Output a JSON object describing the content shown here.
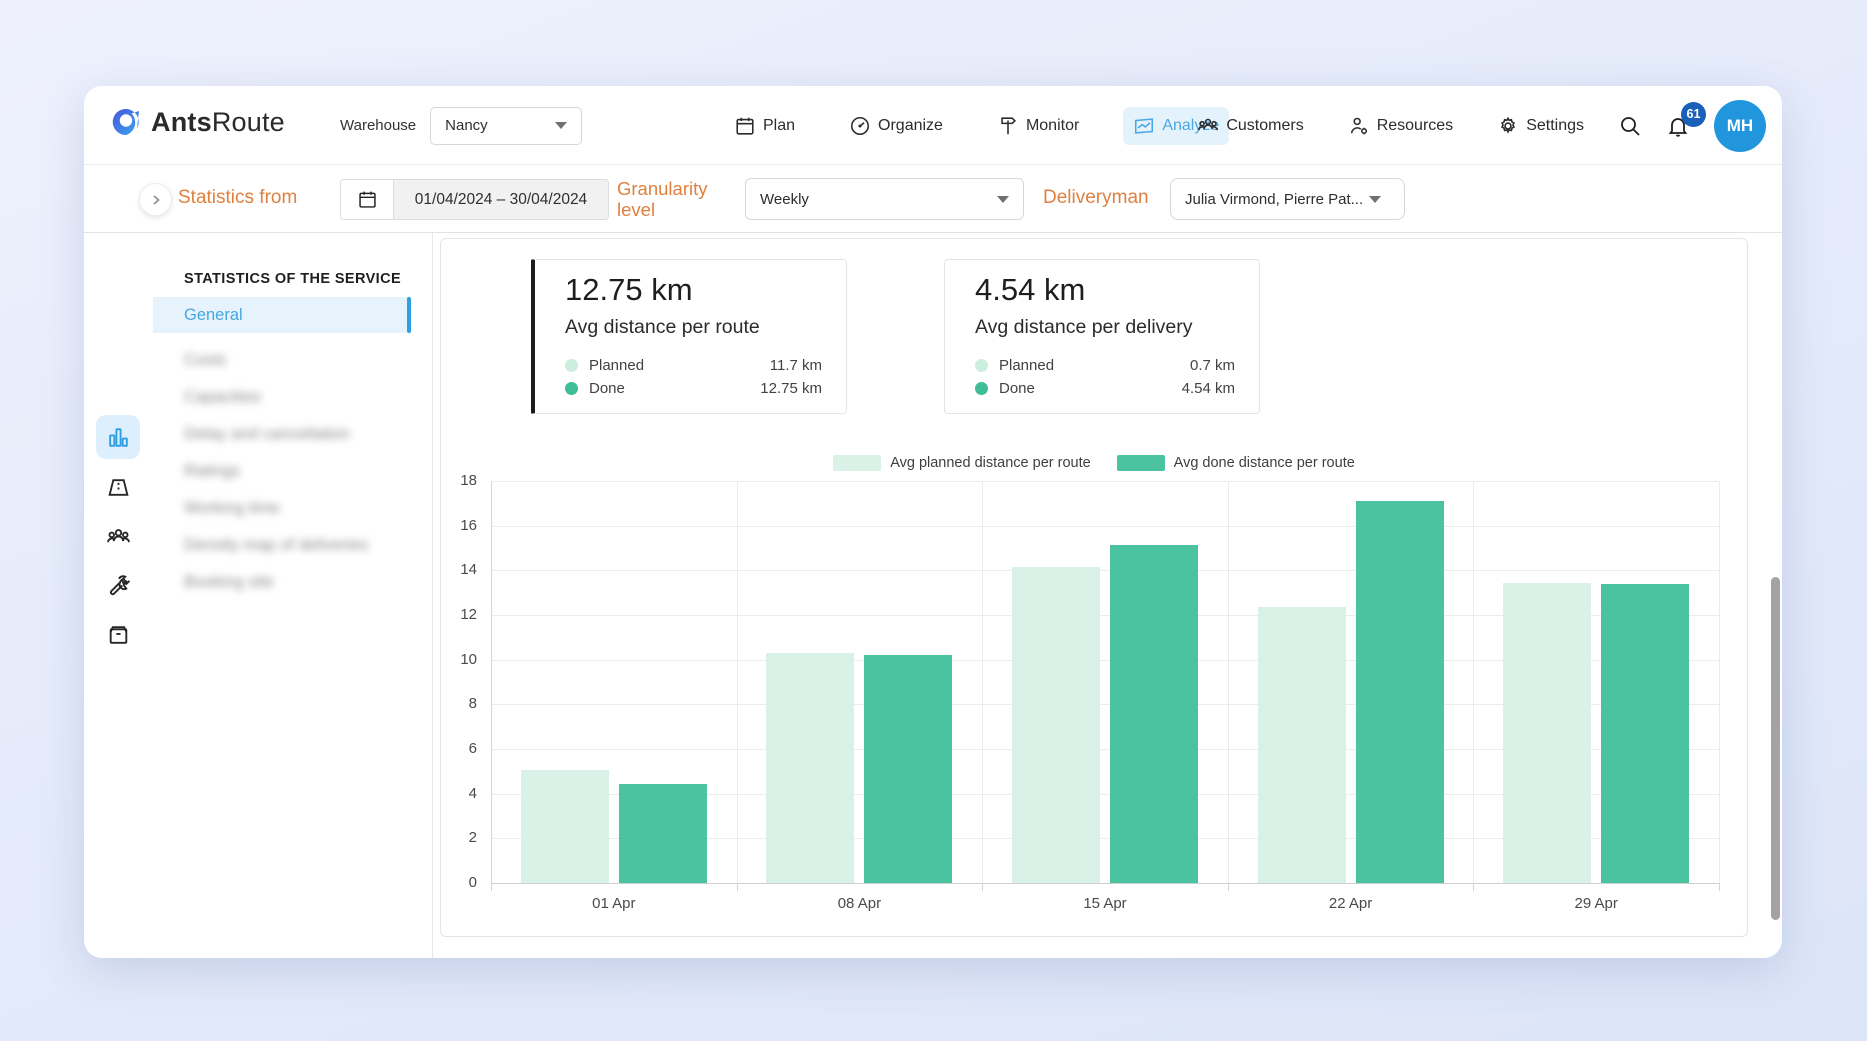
{
  "nav": {
    "brand_bold": "Ants",
    "brand_regular": "Route",
    "warehouse_label": "Warehouse",
    "warehouse_value": "Nancy",
    "tabs": [
      {
        "label": "Plan"
      },
      {
        "label": "Organize"
      },
      {
        "label": "Monitor"
      },
      {
        "label": "Analyze",
        "active": true
      }
    ],
    "right_tabs": [
      {
        "label": "Customers"
      },
      {
        "label": "Resources"
      },
      {
        "label": "Settings"
      }
    ],
    "notification_count": "61",
    "avatar_initials": "MH"
  },
  "filters": {
    "statistics_from_label": "Statistics from",
    "date_range": "01/04/2024 – 30/04/2024",
    "granularity_label_line1": "Granularity",
    "granularity_label_line2": "level",
    "granularity_value": "Weekly",
    "deliveryman_label": "Deliveryman",
    "deliveryman_value": "Julia Virmond, Pierre Pat..."
  },
  "sidebar": {
    "section_title": "STATISTICS OF THE SERVICE",
    "items": [
      {
        "label": "General",
        "active": true
      },
      {
        "label": "Costs",
        "blurred": true
      },
      {
        "label": "Capacities",
        "blurred": true
      },
      {
        "label": "Delay and cancellation",
        "blurred": true
      },
      {
        "label": "Ratings",
        "blurred": true
      },
      {
        "label": "Working time",
        "blurred": true
      },
      {
        "label": "Density map of deliveries",
        "blurred": true
      },
      {
        "label": "Booking site",
        "blurred": true
      }
    ]
  },
  "cards": [
    {
      "value": "12.75 km",
      "subtitle": "Avg distance per route",
      "rows": [
        {
          "label": "Planned",
          "value": "11.7 km"
        },
        {
          "label": "Done",
          "value": "12.75 km"
        }
      ]
    },
    {
      "value": "4.54 km",
      "subtitle": "Avg distance per delivery",
      "rows": [
        {
          "label": "Planned",
          "value": "0.7 km"
        },
        {
          "label": "Done",
          "value": "4.54 km"
        }
      ]
    }
  ],
  "chart_data": {
    "type": "bar",
    "categories": [
      "01 Apr",
      "08 Apr",
      "15 Apr",
      "22 Apr",
      "29 Apr"
    ],
    "series": [
      {
        "name": "Avg planned distance per route",
        "color": "#d9f1e7",
        "values": [
          5.05,
          10.3,
          14.15,
          12.35,
          13.45
        ]
      },
      {
        "name": "Avg done distance per route",
        "color": "#4cc3a0",
        "values": [
          4.45,
          10.2,
          15.15,
          17.1,
          13.4
        ]
      }
    ],
    "ylim": [
      0,
      18
    ],
    "ytick_step": 2,
    "grid": true,
    "legend_position": "top",
    "xlabel": "",
    "ylabel": ""
  },
  "colors": {
    "accent_blue": "#2f9fe0",
    "accent_blue_bg": "#e4f2fc",
    "orange": "#e0803f",
    "planned_green": "#d9f1e7",
    "done_green": "#4cc3a0",
    "avatar_blue": "#2196dd",
    "badge_blue": "#1a5fb8"
  }
}
